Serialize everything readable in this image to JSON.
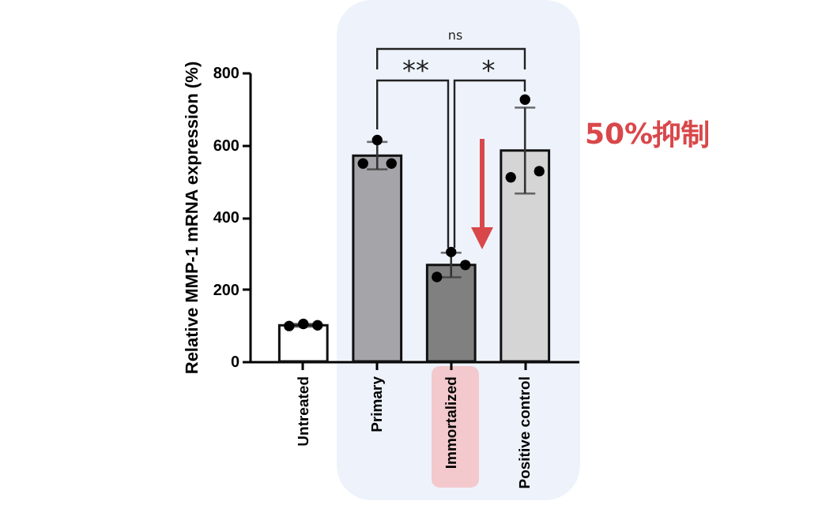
{
  "chart_data": {
    "type": "bar",
    "ylabel": "Relative MMP-1 mRNA expression (%)",
    "categories": [
      "Untreated",
      "Primary",
      "Immortalized",
      "Positive control"
    ],
    "ylim": [
      0,
      800
    ],
    "yticks": [
      0,
      200,
      400,
      600,
      800
    ],
    "marker": "circle",
    "series": [
      {
        "type": "bar",
        "colors": [
          "#ffffff",
          "#a4a4a9",
          "#808080",
          "#d5d5d5"
        ],
        "values": [
          100,
          570,
          267,
          584
        ],
        "errors": [
          4,
          38,
          34,
          119
        ]
      },
      {
        "type": "scatter",
        "color": "#000000",
        "x": [
          "Untreated",
          "Untreated",
          "Untreated",
          "Primary",
          "Primary",
          "Primary",
          "Immortalized",
          "Immortalized",
          "Immortalized",
          "Positive control",
          "Positive control",
          "Positive control"
        ],
        "values": [
          98,
          104,
          100,
          548,
          613,
          548,
          234,
          303,
          267,
          510,
          725,
          527
        ]
      }
    ],
    "annotations": [
      "ns",
      "**",
      "*",
      "50%抑制"
    ]
  }
}
